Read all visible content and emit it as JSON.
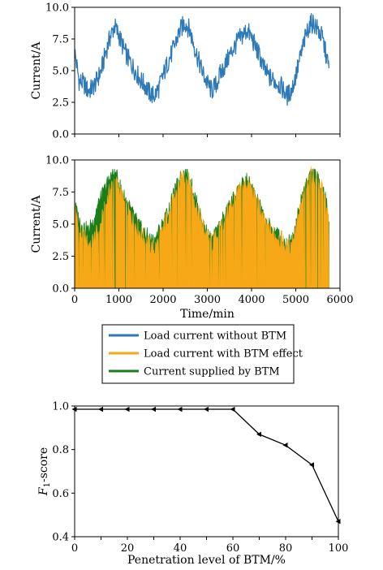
{
  "chart_data": [
    {
      "type": "line",
      "ylabel": "Current/A",
      "xlim": [
        0,
        6000
      ],
      "ylim": [
        0,
        10
      ],
      "yticks": [
        "0.0",
        "2.5",
        "5.0",
        "7.5",
        "10.0"
      ],
      "series": [
        {
          "name": "Load current without BTM",
          "color": "#2e7ab8",
          "x": [
            0,
            100,
            200,
            300,
            400,
            500,
            600,
            700,
            800,
            900,
            1000,
            1100,
            1200,
            1300,
            1400,
            1500,
            1600,
            1700,
            1800,
            1900,
            2000,
            2100,
            2200,
            2300,
            2400,
            2500,
            2600,
            2700,
            2800,
            2900,
            3000,
            3100,
            3200,
            3300,
            3400,
            3500,
            3600,
            3700,
            3800,
            3900,
            4000,
            4100,
            4200,
            4300,
            4400,
            4500,
            4600,
            4700,
            4800,
            4900,
            5000,
            5100,
            5200,
            5300,
            5400,
            5500,
            5600,
            5700,
            5750
          ],
          "y": [
            6.5,
            4.2,
            4.0,
            3.4,
            3.6,
            4.2,
            5.0,
            6.4,
            7.6,
            8.5,
            7.8,
            6.8,
            6.0,
            5.4,
            4.8,
            4.2,
            3.8,
            3.2,
            3.0,
            3.6,
            4.6,
            5.6,
            6.4,
            7.4,
            8.3,
            8.8,
            8.2,
            7.0,
            5.8,
            4.8,
            4.0,
            3.4,
            3.9,
            4.8,
            5.4,
            6.2,
            6.8,
            7.4,
            7.8,
            8.2,
            7.6,
            6.8,
            6.0,
            5.0,
            4.5,
            4.2,
            4.0,
            3.6,
            3.0,
            3.4,
            4.6,
            6.0,
            7.4,
            8.6,
            8.8,
            8.2,
            7.6,
            6.0,
            5.2
          ]
        }
      ]
    },
    {
      "type": "area",
      "xlabel": "Time/min",
      "ylabel": "Current/A",
      "xlim": [
        0,
        6000
      ],
      "ylim": [
        0,
        10
      ],
      "xticks": [
        "0",
        "1000",
        "2000",
        "3000",
        "4000",
        "5000",
        "6000"
      ],
      "yticks": [
        "0.0",
        "2.5",
        "5.0",
        "7.5",
        "10.0"
      ],
      "series": [
        {
          "name": "Current supplied by BTM",
          "color": "#1a7f1a",
          "x": [
            0,
            100,
            200,
            300,
            400,
            500,
            600,
            700,
            800,
            900,
            1000,
            1100,
            1200,
            1300,
            1400,
            1500,
            1600,
            1700,
            1800,
            1900,
            2000,
            2100,
            2200,
            2300,
            2400,
            2500,
            2600,
            2700,
            2800,
            2900,
            3000,
            3100,
            3200,
            3300,
            3400,
            3500,
            3600,
            3700,
            3800,
            3900,
            4000,
            4100,
            4200,
            4300,
            4400,
            4500,
            4600,
            4700,
            4800,
            4900,
            5000,
            5100,
            5200,
            5300,
            5400,
            5500,
            5600,
            5700,
            5750
          ],
          "y": [
            6.5,
            5.2,
            4.8,
            4.4,
            5.0,
            6.2,
            7.0,
            7.8,
            8.6,
            9.0,
            8.2,
            7.2,
            6.6,
            5.8,
            5.2,
            4.6,
            4.2,
            3.8,
            3.6,
            4.4,
            5.0,
            5.8,
            6.8,
            7.8,
            8.6,
            9.0,
            8.4,
            7.4,
            6.0,
            5.0,
            4.2,
            3.6,
            4.2,
            5.0,
            5.6,
            6.4,
            7.0,
            7.6,
            8.0,
            8.4,
            7.8,
            7.0,
            6.2,
            5.2,
            4.8,
            4.4,
            4.2,
            3.8,
            3.4,
            3.8,
            5.0,
            6.4,
            7.8,
            8.8,
            9.0,
            8.4,
            8.0,
            6.4,
            5.2
          ]
        },
        {
          "name": "Load current with BTM effect",
          "color": "#f7a816",
          "x": [
            0,
            100,
            200,
            300,
            400,
            500,
            600,
            700,
            800,
            900,
            1000,
            1100,
            1200,
            1300,
            1400,
            1500,
            1600,
            1700,
            1800,
            1900,
            2000,
            2100,
            2200,
            2300,
            2400,
            2500,
            2600,
            2700,
            2800,
            2900,
            3000,
            3100,
            3200,
            3300,
            3400,
            3500,
            3600,
            3700,
            3800,
            3900,
            4000,
            4100,
            4200,
            4300,
            4400,
            4500,
            4600,
            4700,
            4800,
            4900,
            5000,
            5100,
            5200,
            5300,
            5400,
            5500,
            5600,
            5700,
            5750
          ],
          "y": [
            6.5,
            4.2,
            4.0,
            3.4,
            3.6,
            4.2,
            5.0,
            6.4,
            7.6,
            8.5,
            7.8,
            6.8,
            6.0,
            5.4,
            4.8,
            4.2,
            3.8,
            3.2,
            3.0,
            3.6,
            4.6,
            5.6,
            6.4,
            7.4,
            8.3,
            8.8,
            8.2,
            7.0,
            5.8,
            4.8,
            4.0,
            3.4,
            3.9,
            4.8,
            5.4,
            6.2,
            6.8,
            7.4,
            7.8,
            8.2,
            7.6,
            6.8,
            6.0,
            5.0,
            4.5,
            4.2,
            4.0,
            3.6,
            3.0,
            3.4,
            4.6,
            6.0,
            7.4,
            8.6,
            8.8,
            8.2,
            7.6,
            6.0,
            5.2
          ]
        }
      ],
      "legend": {
        "placement": "below",
        "entries": [
          {
            "label": "Load current without BTM",
            "color": "#2e7ab8"
          },
          {
            "label": "Load current with BTM effect",
            "color": "#f7a816"
          },
          {
            "label": "Current supplied by BTM",
            "color": "#1a7f1a"
          }
        ]
      }
    },
    {
      "type": "line",
      "xlabel": "Penetration level of BTM/%",
      "ylabel": "F1-score",
      "ylabel_main": "F",
      "ylabel_sub": "1",
      "ylabel_rest": "-score",
      "xlim": [
        0,
        100
      ],
      "ylim": [
        0.4,
        1.0
      ],
      "xticks": [
        "0",
        "20",
        "40",
        "60",
        "80",
        "100"
      ],
      "yticks": [
        "0.4",
        "0.6",
        "0.8",
        "1.0"
      ],
      "series": [
        {
          "name": "",
          "color": "#000000",
          "x": [
            0,
            10,
            20,
            30,
            40,
            50,
            60,
            70,
            80,
            90,
            100
          ],
          "y": [
            0.985,
            0.985,
            0.985,
            0.985,
            0.985,
            0.985,
            0.985,
            0.87,
            0.82,
            0.73,
            0.47
          ]
        }
      ]
    }
  ]
}
